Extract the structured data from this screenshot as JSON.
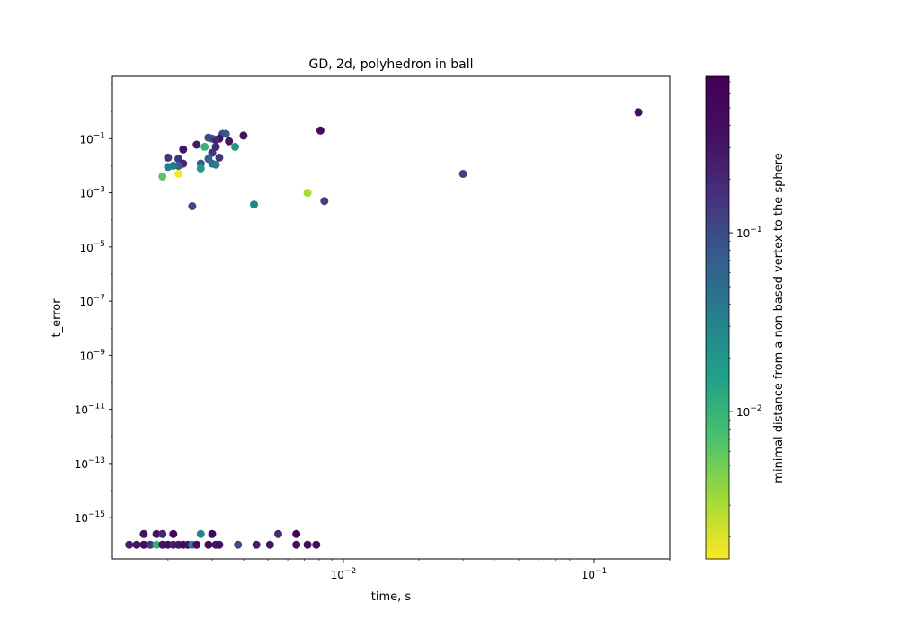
{
  "chart_data": {
    "type": "scatter",
    "title": "GD, 2d, polyhedron in ball",
    "xlabel": "time, s",
    "ylabel": "t_error",
    "xscale": "log",
    "yscale": "log",
    "xlim": [
      0.0012,
      0.2
    ],
    "ylim": [
      3e-17,
      20
    ],
    "grid": false,
    "x_ticks": [
      {
        "value": 0.01,
        "base": "10",
        "exp": "−2"
      },
      {
        "value": 0.1,
        "base": "10",
        "exp": "−1"
      }
    ],
    "y_ticks": [
      {
        "value": 1e-15,
        "base": "10",
        "exp": "−15"
      },
      {
        "value": 1e-13,
        "base": "10",
        "exp": "−13"
      },
      {
        "value": 1e-11,
        "base": "10",
        "exp": "−11"
      },
      {
        "value": 1e-09,
        "base": "10",
        "exp": "−9"
      },
      {
        "value": 1e-07,
        "base": "10",
        "exp": "−7"
      },
      {
        "value": 1e-05,
        "base": "10",
        "exp": "−5"
      },
      {
        "value": 0.001,
        "base": "10",
        "exp": "−3"
      },
      {
        "value": 0.1,
        "base": "10",
        "exp": "−1"
      }
    ],
    "colorbar": {
      "label": "minimal distance from a non-based vertex to the sphere",
      "scale": "log",
      "lim": [
        0.0015,
        0.75
      ],
      "colormap": "viridis_r",
      "ticks": [
        {
          "value": 0.01,
          "base": "10",
          "exp": "−2"
        },
        {
          "value": 0.1,
          "base": "10",
          "exp": "−1"
        }
      ]
    },
    "points": [
      {
        "x": 0.15,
        "y": 0.95,
        "c": 0.35
      },
      {
        "x": 0.0081,
        "y": 0.2,
        "c": 0.45
      },
      {
        "x": 0.004,
        "y": 0.13,
        "c": 0.35
      },
      {
        "x": 0.003,
        "y": 0.1,
        "c": 0.05
      },
      {
        "x": 0.0029,
        "y": 0.11,
        "c": 0.1
      },
      {
        "x": 0.0033,
        "y": 0.15,
        "c": 0.1
      },
      {
        "x": 0.0034,
        "y": 0.15,
        "c": 0.08
      },
      {
        "x": 0.0032,
        "y": 0.1,
        "c": 0.35
      },
      {
        "x": 0.0031,
        "y": 0.09,
        "c": 0.2
      },
      {
        "x": 0.0035,
        "y": 0.08,
        "c": 0.3
      },
      {
        "x": 0.0026,
        "y": 0.06,
        "c": 0.25
      },
      {
        "x": 0.0028,
        "y": 0.05,
        "c": 0.01
      },
      {
        "x": 0.0037,
        "y": 0.05,
        "c": 0.02
      },
      {
        "x": 0.0023,
        "y": 0.04,
        "c": 0.3
      },
      {
        "x": 0.0031,
        "y": 0.05,
        "c": 0.2
      },
      {
        "x": 0.003,
        "y": 0.03,
        "c": 0.15
      },
      {
        "x": 0.0032,
        "y": 0.02,
        "c": 0.15
      },
      {
        "x": 0.0029,
        "y": 0.018,
        "c": 0.06
      },
      {
        "x": 0.002,
        "y": 0.02,
        "c": 0.15
      },
      {
        "x": 0.0022,
        "y": 0.018,
        "c": 0.15
      },
      {
        "x": 0.0023,
        "y": 0.012,
        "c": 0.2
      },
      {
        "x": 0.0022,
        "y": 0.01,
        "c": 0.07
      },
      {
        "x": 0.002,
        "y": 0.009,
        "c": 0.03
      },
      {
        "x": 0.0021,
        "y": 0.01,
        "c": 0.04
      },
      {
        "x": 0.0027,
        "y": 0.012,
        "c": 0.08
      },
      {
        "x": 0.003,
        "y": 0.012,
        "c": 0.05
      },
      {
        "x": 0.0031,
        "y": 0.011,
        "c": 0.04
      },
      {
        "x": 0.0027,
        "y": 0.008,
        "c": 0.02
      },
      {
        "x": 0.0019,
        "y": 0.004,
        "c": 0.006
      },
      {
        "x": 0.0022,
        "y": 0.005,
        "c": 0.0016
      },
      {
        "x": 0.03,
        "y": 0.005,
        "c": 0.12
      },
      {
        "x": 0.0072,
        "y": 0.001,
        "c": 0.003
      },
      {
        "x": 0.0084,
        "y": 0.0005,
        "c": 0.12
      },
      {
        "x": 0.0044,
        "y": 0.00037,
        "c": 0.03
      },
      {
        "x": 0.0025,
        "y": 0.00032,
        "c": 0.1
      },
      {
        "x": 0.0016,
        "y": 2.5e-16,
        "c": 0.3
      },
      {
        "x": 0.0018,
        "y": 2.5e-16,
        "c": 0.3
      },
      {
        "x": 0.0019,
        "y": 2.5e-16,
        "c": 0.2
      },
      {
        "x": 0.0021,
        "y": 2.5e-16,
        "c": 0.5
      },
      {
        "x": 0.0027,
        "y": 2.5e-16,
        "c": 0.03
      },
      {
        "x": 0.003,
        "y": 2.5e-16,
        "c": 0.45
      },
      {
        "x": 0.0055,
        "y": 2.5e-16,
        "c": 0.2
      },
      {
        "x": 0.0065,
        "y": 2.5e-16,
        "c": 0.7
      },
      {
        "x": 0.0014,
        "y": 1e-16,
        "c": 0.25
      },
      {
        "x": 0.0015,
        "y": 1e-16,
        "c": 0.3
      },
      {
        "x": 0.0016,
        "y": 1e-16,
        "c": 0.35
      },
      {
        "x": 0.0017,
        "y": 1e-16,
        "c": 0.15
      },
      {
        "x": 0.0018,
        "y": 1e-16,
        "c": 0.01
      },
      {
        "x": 0.0019,
        "y": 1e-16,
        "c": 0.3
      },
      {
        "x": 0.002,
        "y": 1e-16,
        "c": 0.35
      },
      {
        "x": 0.0021,
        "y": 1e-16,
        "c": 0.25
      },
      {
        "x": 0.0022,
        "y": 1e-16,
        "c": 0.3
      },
      {
        "x": 0.0023,
        "y": 1e-16,
        "c": 0.4
      },
      {
        "x": 0.0024,
        "y": 1e-16,
        "c": 0.35
      },
      {
        "x": 0.0025,
        "y": 1e-16,
        "c": 0.03
      },
      {
        "x": 0.0026,
        "y": 1e-16,
        "c": 0.4
      },
      {
        "x": 0.0029,
        "y": 1e-16,
        "c": 0.45
      },
      {
        "x": 0.0031,
        "y": 1e-16,
        "c": 0.3
      },
      {
        "x": 0.0032,
        "y": 1e-16,
        "c": 0.35
      },
      {
        "x": 0.0038,
        "y": 1e-16,
        "c": 0.1
      },
      {
        "x": 0.0045,
        "y": 1e-16,
        "c": 0.25
      },
      {
        "x": 0.0051,
        "y": 1e-16,
        "c": 0.3
      },
      {
        "x": 0.0065,
        "y": 1e-16,
        "c": 0.35
      },
      {
        "x": 0.0072,
        "y": 1e-16,
        "c": 0.4
      },
      {
        "x": 0.0078,
        "y": 1e-16,
        "c": 0.45
      }
    ]
  }
}
